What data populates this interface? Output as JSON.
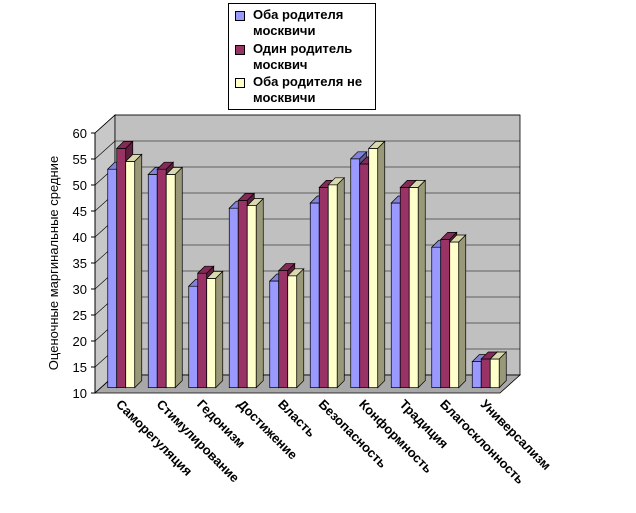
{
  "chart_data": {
    "type": "bar3d",
    "y_label": "Оценочные маргинальные средние",
    "categories": [
      "Саморегуляция",
      "Стимулирование",
      "Гедонизм",
      "Достижение",
      "Власть",
      "Безопасность",
      "Конформность",
      "Традиция",
      "Благосклонность",
      "Универсализм"
    ],
    "series": [
      {
        "name": "Оба родителя москвичи",
        "color": "#9999ff",
        "values": [
          52,
          51,
          29.5,
          44.5,
          30.5,
          45.5,
          54,
          45.5,
          37,
          15
        ]
      },
      {
        "name": "Один родитель москвич",
        "color": "#993366",
        "values": [
          56,
          52,
          32,
          46,
          32.5,
          48.5,
          53,
          48.5,
          38.5,
          15.5
        ]
      },
      {
        "name": "Оба родителя не москвичи",
        "color": "#ffffcc",
        "values": [
          53.5,
          51,
          31,
          45,
          31.5,
          49,
          56,
          48.5,
          38,
          15.5
        ]
      }
    ],
    "ylim": [
      10,
      60
    ],
    "yticks": [
      10,
      15,
      20,
      25,
      30,
      35,
      40,
      45,
      50,
      55,
      60
    ],
    "grid": true
  }
}
